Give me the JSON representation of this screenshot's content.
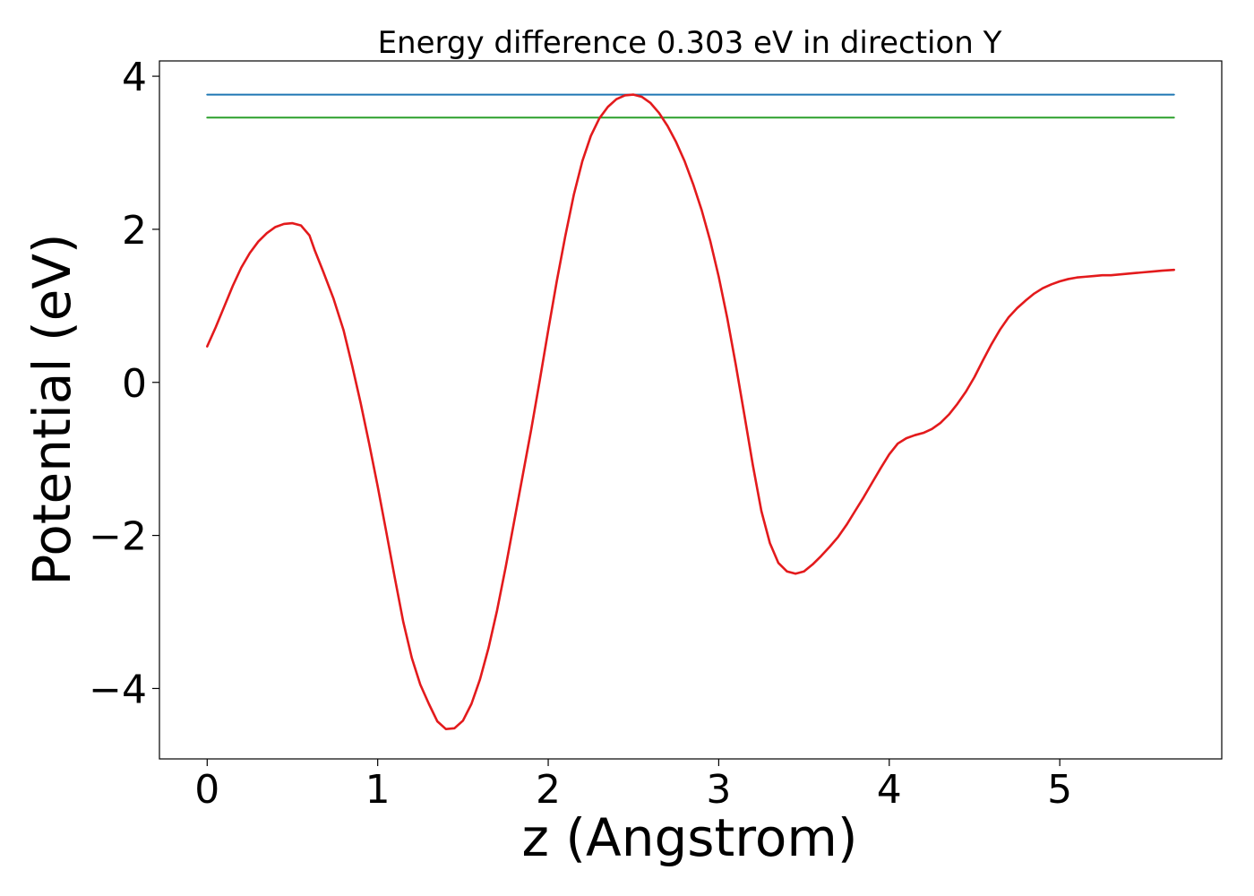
{
  "chart_data": {
    "type": "line",
    "title": "Energy difference 0.303 eV in direction Y",
    "xlabel": "z (Angstrom)",
    "ylabel": "Potential (eV)",
    "xlim": [
      -0.28,
      5.95
    ],
    "ylim": [
      -4.92,
      4.2
    ],
    "xticks": [
      0,
      1,
      2,
      3,
      4,
      5
    ],
    "xtick_labels": [
      "0",
      "1",
      "2",
      "3",
      "4",
      "5"
    ],
    "yticks": [
      4,
      2,
      0,
      -2,
      -4
    ],
    "ytick_labels": [
      "4",
      "2",
      "0",
      "−2",
      "−4"
    ],
    "grid": false,
    "series": [
      {
        "color": "#1f77b4",
        "x": [
          0,
          5.67
        ],
        "y": [
          3.76,
          3.76
        ]
      },
      {
        "color": "#2ca02c",
        "x": [
          0,
          5.67
        ],
        "y": [
          3.46,
          3.46
        ]
      },
      {
        "color": "#e31a1c",
        "x": [
          0,
          0.05,
          0.1,
          0.15,
          0.2,
          0.25,
          0.3,
          0.35,
          0.4,
          0.45,
          0.5,
          0.55,
          0.6,
          0.63,
          0.68,
          0.74,
          0.8,
          0.85,
          0.9,
          0.95,
          1.0,
          1.05,
          1.1,
          1.15,
          1.2,
          1.25,
          1.3,
          1.35,
          1.4,
          1.45,
          1.5,
          1.55,
          1.6,
          1.65,
          1.7,
          1.75,
          1.8,
          1.85,
          1.9,
          1.95,
          2.0,
          2.05,
          2.1,
          2.15,
          2.2,
          2.25,
          2.3,
          2.35,
          2.4,
          2.45,
          2.5,
          2.55,
          2.6,
          2.65,
          2.7,
          2.75,
          2.8,
          2.85,
          2.9,
          2.95,
          3.0,
          3.05,
          3.1,
          3.15,
          3.2,
          3.25,
          3.3,
          3.35,
          3.4,
          3.45,
          3.5,
          3.55,
          3.6,
          3.65,
          3.7,
          3.75,
          3.8,
          3.85,
          3.9,
          3.95,
          4.0,
          4.05,
          4.1,
          4.15,
          4.2,
          4.25,
          4.3,
          4.35,
          4.4,
          4.45,
          4.5,
          4.55,
          4.6,
          4.65,
          4.7,
          4.75,
          4.8,
          4.85,
          4.9,
          4.95,
          5.0,
          5.05,
          5.1,
          5.15,
          5.2,
          5.25,
          5.3,
          5.35,
          5.4,
          5.45,
          5.5,
          5.55,
          5.6,
          5.67
        ],
        "y": [
          0.47,
          0.72,
          0.99,
          1.26,
          1.5,
          1.69,
          1.84,
          1.95,
          2.03,
          2.07,
          2.08,
          2.05,
          1.92,
          1.73,
          1.45,
          1.1,
          0.68,
          0.22,
          -0.27,
          -0.8,
          -1.36,
          -1.95,
          -2.55,
          -3.13,
          -3.6,
          -3.95,
          -4.2,
          -4.43,
          -4.53,
          -4.52,
          -4.42,
          -4.2,
          -3.88,
          -3.47,
          -2.98,
          -2.42,
          -1.82,
          -1.22,
          -0.62,
          0.02,
          0.68,
          1.32,
          1.91,
          2.45,
          2.89,
          3.22,
          3.45,
          3.6,
          3.7,
          3.75,
          3.76,
          3.73,
          3.65,
          3.52,
          3.35,
          3.14,
          2.89,
          2.59,
          2.25,
          1.85,
          1.38,
          0.84,
          0.23,
          -0.42,
          -1.08,
          -1.68,
          -2.1,
          -2.36,
          -2.47,
          -2.5,
          -2.47,
          -2.38,
          -2.27,
          -2.15,
          -2.02,
          -1.86,
          -1.68,
          -1.5,
          -1.31,
          -1.12,
          -0.94,
          -0.8,
          -0.73,
          -0.69,
          -0.66,
          -0.61,
          -0.53,
          -0.42,
          -0.28,
          -0.12,
          0.07,
          0.29,
          0.5,
          0.69,
          0.85,
          0.97,
          1.07,
          1.16,
          1.23,
          1.28,
          1.32,
          1.35,
          1.37,
          1.38,
          1.39,
          1.4,
          1.4,
          1.41,
          1.42,
          1.43,
          1.44,
          1.45,
          1.46,
          1.47
        ]
      }
    ]
  }
}
